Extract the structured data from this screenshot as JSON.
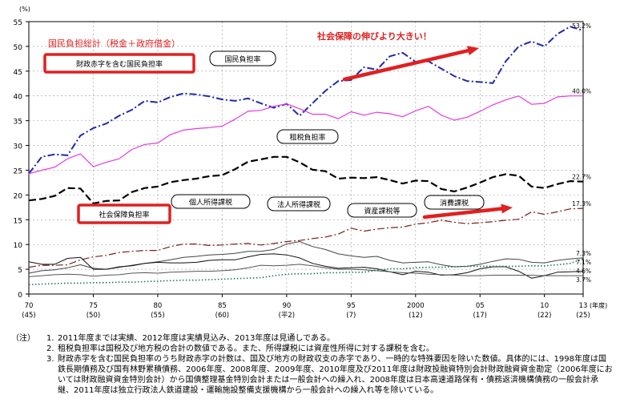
{
  "chart_data": {
    "type": "line",
    "y_unit": "(%)",
    "x_unit": "(年度)",
    "ylim": [
      0,
      55
    ],
    "yticks": [
      0,
      5,
      10,
      15,
      20,
      25,
      30,
      35,
      40,
      45,
      50,
      55
    ],
    "xlim": [
      1970,
      2013
    ],
    "xticks": [
      {
        "x": 1970,
        "label": "70",
        "sub": "(45)"
      },
      {
        "x": 1975,
        "label": "75",
        "sub": "(50)"
      },
      {
        "x": 1980,
        "label": "80",
        "sub": "(55)"
      },
      {
        "x": 1985,
        "label": "85",
        "sub": "(60)"
      },
      {
        "x": 1990,
        "label": "90",
        "sub": "(平2)"
      },
      {
        "x": 1995,
        "label": "95",
        "sub": "(7)"
      },
      {
        "x": 2000,
        "label": "2000",
        "sub": "(12)"
      },
      {
        "x": 2005,
        "label": "05",
        "sub": "(17)"
      },
      {
        "x": 2010,
        "label": "10",
        "sub": "(22)"
      },
      {
        "x": 2013,
        "label": "13",
        "sub": "(25)"
      }
    ],
    "x": [
      1970,
      1971,
      1972,
      1973,
      1974,
      1975,
      1976,
      1977,
      1978,
      1979,
      1980,
      1981,
      1982,
      1983,
      1984,
      1985,
      1986,
      1987,
      1988,
      1989,
      1990,
      1991,
      1992,
      1993,
      1994,
      1995,
      1996,
      1997,
      1998,
      1999,
      2000,
      2001,
      2002,
      2003,
      2004,
      2005,
      2006,
      2007,
      2008,
      2009,
      2010,
      2011,
      2012,
      2013
    ],
    "series": [
      {
        "name": "財政赤字を含む国民負担率",
        "color": "#1f2aa8",
        "style": "dashdot",
        "width": 2,
        "end_label": "53.2%",
        "values": [
          24.3,
          27.7,
          28.2,
          28.0,
          32.0,
          33.5,
          34.4,
          36.0,
          37.2,
          39.0,
          38.7,
          39.8,
          40.5,
          40.3,
          39.9,
          39.3,
          39.0,
          39.5,
          38.5,
          37.6,
          38.4,
          36.0,
          38.5,
          41.0,
          43.0,
          43.2,
          45.8,
          45.3,
          48.0,
          48.7,
          46.9,
          47.0,
          45.5,
          44.0,
          43.0,
          42.8,
          42.6,
          47.0,
          50.0,
          51.0,
          50.0,
          52.5,
          54.0,
          53.2
        ]
      },
      {
        "name": "国民負担率",
        "color": "#e23be0",
        "style": "solid",
        "width": 1.2,
        "end_label": "40.0%",
        "values": [
          24.3,
          25.0,
          25.6,
          27.3,
          28.3,
          25.7,
          26.6,
          27.3,
          29.2,
          30.2,
          30.5,
          32.2,
          33.1,
          33.4,
          33.6,
          33.9,
          35.3,
          36.9,
          37.1,
          37.9,
          38.4,
          37.4,
          36.3,
          36.3,
          35.4,
          36.8,
          36.1,
          36.7,
          36.4,
          35.8,
          37.0,
          37.9,
          36.1,
          35.1,
          35.7,
          36.9,
          38.2,
          39.2,
          40.0,
          38.3,
          38.5,
          39.8,
          40.0,
          40.0
        ]
      },
      {
        "name": "租税負担率",
        "color": "#000000",
        "style": "dashed",
        "width": 2.2,
        "end_label": "22.7%",
        "values": [
          18.9,
          19.2,
          19.8,
          21.4,
          21.3,
          18.3,
          18.8,
          18.9,
          20.6,
          21.4,
          21.7,
          22.6,
          23.0,
          23.3,
          23.8,
          24.0,
          25.2,
          26.7,
          27.2,
          27.7,
          27.7,
          26.6,
          25.1,
          24.8,
          23.3,
          23.5,
          23.4,
          23.6,
          23.0,
          22.3,
          22.9,
          22.8,
          21.2,
          20.7,
          21.5,
          22.5,
          23.6,
          24.2,
          23.9,
          21.7,
          21.4,
          22.2,
          22.8,
          22.7
        ]
      },
      {
        "name": "社会保障負担率",
        "color": "#7a1f1f",
        "style": "dashdot",
        "width": 1.2,
        "end_label": "17.3%",
        "values": [
          5.4,
          5.8,
          5.8,
          5.9,
          6.9,
          7.5,
          7.8,
          8.4,
          8.6,
          8.8,
          8.8,
          9.6,
          10.1,
          10.1,
          9.8,
          9.9,
          10.1,
          10.2,
          9.9,
          10.2,
          10.6,
          10.8,
          11.2,
          11.5,
          12.1,
          13.3,
          12.7,
          13.1,
          13.4,
          13.5,
          14.1,
          14.4,
          14.9,
          14.5,
          14.2,
          14.4,
          14.6,
          14.9,
          15.1,
          16.6,
          16.1,
          16.6,
          17.2,
          17.3
        ]
      },
      {
        "name": "個人所得課税",
        "color": "#444444",
        "style": "solid",
        "width": 1,
        "end_label": "7.3%",
        "values": [
          4.2,
          4.7,
          4.9,
          5.3,
          5.9,
          5.2,
          5.0,
          5.4,
          5.8,
          6.2,
          6.5,
          6.9,
          7.4,
          7.6,
          7.9,
          8.0,
          8.2,
          8.6,
          8.6,
          9.0,
          10.1,
          10.6,
          9.6,
          9.0,
          8.1,
          7.7,
          7.4,
          7.6,
          6.8,
          6.3,
          6.4,
          6.5,
          5.9,
          5.5,
          5.6,
          6.0,
          6.6,
          7.1,
          7.0,
          6.4,
          6.3,
          6.8,
          7.1,
          7.3
        ]
      },
      {
        "name": "法人所得課税",
        "color": "#111111",
        "style": "solid",
        "width": 1,
        "end_label": "4.6%",
        "values": [
          6.5,
          6.0,
          6.0,
          7.2,
          7.4,
          5.0,
          5.0,
          5.5,
          5.7,
          6.2,
          6.4,
          6.3,
          6.3,
          6.4,
          6.8,
          6.9,
          6.9,
          7.5,
          8.0,
          8.1,
          7.9,
          7.3,
          6.2,
          5.6,
          5.2,
          5.3,
          5.4,
          5.1,
          4.5,
          3.9,
          4.6,
          4.4,
          3.8,
          3.9,
          4.3,
          5.1,
          5.5,
          5.5,
          4.6,
          3.2,
          3.7,
          4.4,
          4.5,
          4.6
        ]
      },
      {
        "name": "資産課税等",
        "color": "#555555",
        "style": "solid",
        "width": 1,
        "end_label": "3.7%",
        "values": [
          3.5,
          3.7,
          3.9,
          4.0,
          3.9,
          3.6,
          3.8,
          3.9,
          4.2,
          4.3,
          4.2,
          4.4,
          4.5,
          4.6,
          4.6,
          4.7,
          4.9,
          5.3,
          5.8,
          5.7,
          5.8,
          6.0,
          5.7,
          5.3,
          5.0,
          5.0,
          4.9,
          4.7,
          4.5,
          4.3,
          4.2,
          4.0,
          3.9,
          3.8,
          3.7,
          3.7,
          3.8,
          3.8,
          3.8,
          3.8,
          3.7,
          3.7,
          3.7,
          3.7
        ]
      },
      {
        "name": "消費課税",
        "color": "#1a7a55",
        "style": "dotted",
        "width": 1.6,
        "end_label": "7.1%",
        "values": [
          1.9,
          2.0,
          2.1,
          2.2,
          2.2,
          2.3,
          2.3,
          2.4,
          2.4,
          2.5,
          2.6,
          2.7,
          2.8,
          2.8,
          2.9,
          3.0,
          3.1,
          3.2,
          3.3,
          3.7,
          4.0,
          4.1,
          4.1,
          4.3,
          4.3,
          4.4,
          4.4,
          4.8,
          5.1,
          5.1,
          5.3,
          5.4,
          5.4,
          5.5,
          5.6,
          5.6,
          5.6,
          5.6,
          5.6,
          5.7,
          5.7,
          5.9,
          6.2,
          7.1
        ]
      }
    ],
    "label_boxes": [
      {
        "text": "財政赤字を含む国民負担率",
        "highlight": true
      },
      {
        "text": "国民負担率",
        "highlight": false
      },
      {
        "text": "租税負担率",
        "highlight": false
      },
      {
        "text": "社会保障負担率",
        "highlight": true
      },
      {
        "text": "個人所得課税",
        "highlight": false
      },
      {
        "text": "法人所得課税",
        "highlight": false
      },
      {
        "text": "資産課税等",
        "highlight": false
      },
      {
        "text": "消費課税",
        "highlight": false
      }
    ],
    "annotations": {
      "top_left_red": "国民負担総計（税金＋政府借金）",
      "top_right_red": "社会保障の伸びより大きい！"
    },
    "accent_color": "#e02020"
  },
  "notes": [
    {
      "prefix": "（注）",
      "num": "1.",
      "text": "2011年度までは実績、2012年度は実績見込み、2013年度は見通しである。"
    },
    {
      "prefix": "",
      "num": "2.",
      "text": "租税負担率は国税及び地方税の合計の数値である。また、所得課税には資産性所得に対する課税を含む。"
    },
    {
      "prefix": "",
      "num": "3.",
      "text": "財政赤字を含む国民負担率のうち財政赤字の計数は、国及び地方の財政収支の赤字であり、一時的な特殊要因を除いた数値。具体的には、1998年度は国鉄長期債務及び国有林野累積債務、2006年度、2008年度、2009年度、2010年度及び2011年度は財政投融資特別会計財政融資資金勘定（2006年度においては財政融資資金特別会計）から国債整理基金特別会計または一般会計への繰入れ、2008年度は日本高速道路保有・債務返済機構債務の一般会計承継、2011年度は独立行政法人鉄道建設・運輸施設整備支援機構から一般会計への繰入れ等を除いている。"
    }
  ]
}
